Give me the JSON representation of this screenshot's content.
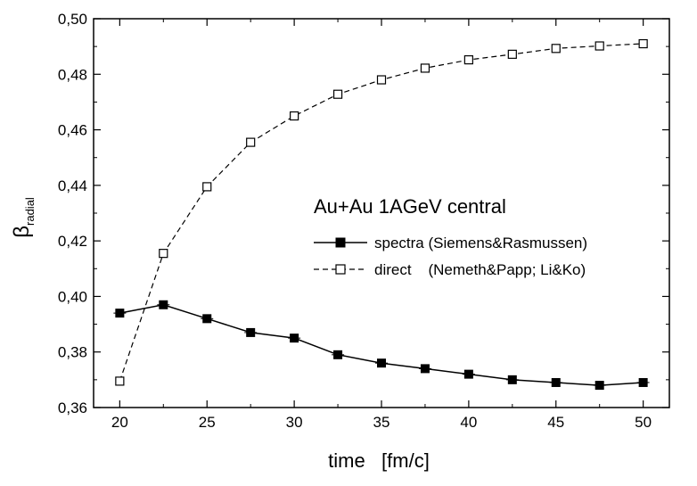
{
  "chart_data": {
    "type": "line",
    "title": "",
    "annotation": "Au+Au 1AGeV central",
    "xlabel": "time   [fm/c]",
    "ylabel_main": "β",
    "ylabel_sub": "radial",
    "xlim": [
      18.5,
      51.5
    ],
    "ylim": [
      0.36,
      0.5
    ],
    "xticks": [
      20,
      25,
      30,
      35,
      40,
      45,
      50
    ],
    "xtick_labels": [
      "20",
      "25",
      "30",
      "35",
      "40",
      "45",
      "50"
    ],
    "yticks": [
      0.36,
      0.38,
      0.4,
      0.42,
      0.44,
      0.46,
      0.48,
      0.5
    ],
    "ytick_labels": [
      "0,36",
      "0,38",
      "0,40",
      "0,42",
      "0,44",
      "0,46",
      "0,48",
      "0,50"
    ],
    "grid": false,
    "legend_position": "center-right",
    "series": [
      {
        "name": "spectra (Siemens&Rasmussen)",
        "line_style": "solid",
        "marker": "filled-square",
        "color": "#000000",
        "x": [
          20,
          22.5,
          25,
          27.5,
          30,
          32.5,
          35,
          37.5,
          40,
          42.5,
          45,
          47.5,
          50
        ],
        "values": [
          0.394,
          0.397,
          0.392,
          0.387,
          0.385,
          0.379,
          0.376,
          0.374,
          0.372,
          0.37,
          0.369,
          0.368,
          0.369
        ]
      },
      {
        "name": "direct    (Nemeth&Papp; Li&Ko)",
        "line_style": "dashed",
        "marker": "open-square",
        "color": "#000000",
        "x": [
          20,
          22.5,
          25,
          27.5,
          30,
          32.5,
          35,
          37.5,
          40,
          42.5,
          45,
          47.5,
          50
        ],
        "values": [
          0.3695,
          0.4155,
          0.4395,
          0.4555,
          0.465,
          0.4728,
          0.478,
          0.4822,
          0.4852,
          0.4872,
          0.4893,
          0.4902,
          0.491
        ]
      }
    ]
  }
}
